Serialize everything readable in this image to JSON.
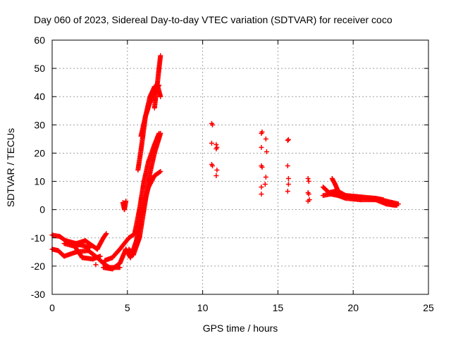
{
  "chart_data": {
    "type": "scatter",
    "title": "Day 060 of 2023, Sidereal Day-to-day VTEC variation (SDTVAR) for receiver coco",
    "xlabel": "GPS time / hours",
    "ylabel": "SDTVAR / TECUs",
    "xlim": [
      0,
      25
    ],
    "ylim": [
      -30,
      60
    ],
    "xticks": [
      0,
      5,
      10,
      15,
      20,
      25
    ],
    "yticks": [
      -30,
      -20,
      -10,
      0,
      10,
      20,
      30,
      40,
      50,
      60
    ],
    "grid": true,
    "marker": "plus",
    "color": "#ff0000",
    "segments": [
      [
        0.0,
        -9,
        0.5,
        -9.5
      ],
      [
        0.5,
        -9.5,
        0.9,
        -11
      ],
      [
        0.9,
        -11,
        1.6,
        -12
      ],
      [
        1.6,
        -12,
        2.2,
        -11
      ],
      [
        2.2,
        -11,
        3.0,
        -14
      ],
      [
        3.0,
        -14,
        3.4,
        -10
      ],
      [
        3.4,
        -10,
        3.6,
        -8.5
      ],
      [
        0.0,
        -14,
        0.4,
        -14.5
      ],
      [
        0.4,
        -14.5,
        0.8,
        -16.5
      ],
      [
        0.8,
        -16.5,
        1.6,
        -15
      ],
      [
        1.6,
        -15,
        2.4,
        -14.5
      ],
      [
        2.4,
        -14.5,
        3.0,
        -17
      ],
      [
        3.0,
        -17,
        3.4,
        -19
      ],
      [
        3.4,
        -19,
        3.8,
        -20.5
      ],
      [
        3.8,
        -20.5,
        4.5,
        -20.5
      ],
      [
        0.8,
        -12,
        1.5,
        -13
      ],
      [
        1.5,
        -13,
        2.0,
        -17
      ],
      [
        2.0,
        -17,
        2.7,
        -17.5
      ],
      [
        2.7,
        -17.5,
        3.2,
        -16.5
      ],
      [
        1.3,
        -12.5,
        1.9,
        -12.5
      ],
      [
        1.9,
        -12.5,
        2.5,
        -13.5
      ],
      [
        3.5,
        -18,
        4.0,
        -17
      ],
      [
        4.0,
        -17,
        4.5,
        -14
      ],
      [
        4.5,
        -14,
        5.1,
        -10
      ],
      [
        5.1,
        -10,
        5.5,
        -8.5
      ],
      [
        3.4,
        -20.5,
        4.0,
        -21
      ],
      [
        4.0,
        -21,
        4.5,
        -19
      ],
      [
        4.5,
        -19,
        4.9,
        -14
      ],
      [
        4.9,
        -14,
        5.2,
        -17
      ],
      [
        5.2,
        -17,
        5.6,
        -11
      ],
      [
        5.6,
        -11,
        6.0,
        0
      ],
      [
        6.0,
        0,
        6.4,
        8
      ],
      [
        6.4,
        8,
        6.8,
        12
      ],
      [
        6.8,
        12,
        7.2,
        13.5
      ],
      [
        5.1,
        -14,
        5.4,
        -16
      ],
      [
        5.4,
        -16,
        5.8,
        -10
      ],
      [
        5.8,
        -10,
        6.1,
        0
      ],
      [
        6.1,
        0,
        6.5,
        13
      ],
      [
        6.5,
        13,
        6.8,
        20
      ],
      [
        6.8,
        20,
        7.2,
        27
      ],
      [
        5.5,
        -8,
        5.8,
        0
      ],
      [
        5.8,
        0,
        6.1,
        10
      ],
      [
        6.1,
        10,
        6.4,
        17
      ],
      [
        6.4,
        17,
        6.8,
        23
      ],
      [
        6.8,
        23,
        7.1,
        27
      ],
      [
        5.7,
        14,
        5.9,
        21
      ],
      [
        5.9,
        21,
        6.2,
        33
      ],
      [
        6.2,
        33,
        6.5,
        40
      ],
      [
        6.5,
        40,
        6.8,
        43.5
      ],
      [
        6.8,
        43.5,
        7.0,
        44
      ],
      [
        7.0,
        44,
        7.2,
        40
      ],
      [
        5.9,
        26,
        6.2,
        33
      ],
      [
        6.2,
        33,
        6.5,
        38
      ],
      [
        6.5,
        38,
        6.8,
        42
      ],
      [
        6.8,
        42,
        7.1,
        44
      ],
      [
        6.8,
        36,
        7.0,
        45
      ],
      [
        7.0,
        45,
        7.1,
        50
      ],
      [
        7.1,
        50,
        7.2,
        54.5
      ],
      [
        18.0,
        8,
        18.4,
        6
      ],
      [
        18.4,
        6,
        18.8,
        6.5
      ],
      [
        18.8,
        6.5,
        19.3,
        5
      ],
      [
        19.3,
        5,
        20.0,
        4.5
      ],
      [
        20.0,
        4.5,
        21.0,
        4
      ],
      [
        21.0,
        4,
        21.8,
        3.5
      ],
      [
        21.8,
        3.5,
        22.4,
        2.5
      ],
      [
        22.4,
        2.5,
        22.9,
        1.5
      ],
      [
        18.0,
        5,
        18.5,
        5.5
      ],
      [
        18.5,
        5.5,
        19.0,
        5
      ],
      [
        19.0,
        5,
        19.5,
        4
      ],
      [
        19.5,
        4,
        20.5,
        3.5
      ],
      [
        20.5,
        3.5,
        21.5,
        3.5
      ],
      [
        21.5,
        3.5,
        22.2,
        2
      ],
      [
        22.2,
        2,
        22.8,
        1.5
      ],
      [
        18.6,
        11,
        18.8,
        9
      ],
      [
        18.8,
        9,
        19.0,
        6.5
      ],
      [
        19.0,
        6.5,
        19.5,
        5
      ],
      [
        19.5,
        5,
        20.5,
        4.5
      ],
      [
        20.5,
        4.5,
        21.5,
        4
      ],
      [
        21.5,
        4,
        22.0,
        3.5
      ],
      [
        21.5,
        4,
        22.2,
        3
      ],
      [
        22.2,
        3,
        22.6,
        2.5
      ],
      [
        22.6,
        2.5,
        23.0,
        2
      ],
      [
        4.7,
        2.5,
        4.8,
        0
      ],
      [
        4.8,
        0,
        4.9,
        3
      ]
    ],
    "points": [
      [
        10.6,
        30.5
      ],
      [
        10.65,
        30.0
      ],
      [
        10.6,
        23.5
      ],
      [
        10.6,
        16.0
      ],
      [
        10.65,
        15.5
      ],
      [
        10.9,
        23.0
      ],
      [
        10.95,
        22.0
      ],
      [
        10.9,
        21.5
      ],
      [
        10.95,
        14.0
      ],
      [
        10.9,
        12.0
      ],
      [
        13.9,
        27.0
      ],
      [
        13.95,
        27.5
      ],
      [
        13.9,
        22.0
      ],
      [
        14.2,
        25.0
      ],
      [
        14.25,
        20.5
      ],
      [
        13.9,
        15.5
      ],
      [
        13.95,
        15.0
      ],
      [
        14.2,
        11.5
      ],
      [
        14.15,
        9.0
      ],
      [
        13.9,
        8.0
      ],
      [
        13.9,
        5.5
      ],
      [
        15.65,
        24.5
      ],
      [
        15.7,
        24.8
      ],
      [
        15.65,
        15.5
      ],
      [
        15.7,
        11.0
      ],
      [
        15.7,
        9.0
      ],
      [
        15.65,
        6.5
      ],
      [
        17.0,
        11.0
      ],
      [
        17.05,
        10.0
      ],
      [
        17.0,
        6.0
      ],
      [
        17.05,
        5.5
      ],
      [
        17.0,
        3.0
      ],
      [
        17.1,
        3.5
      ],
      [
        2.9,
        -19.5
      ],
      [
        4.8,
        1.5
      ]
    ]
  }
}
